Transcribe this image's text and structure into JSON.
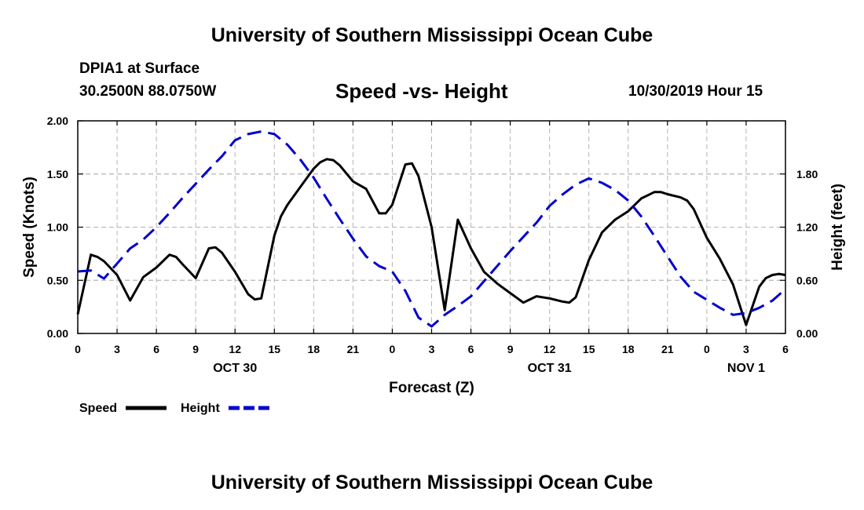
{
  "header": {
    "org_title": "University of Southern Mississippi Ocean Cube",
    "station": "DPIA1 at Surface",
    "coords": "30.2500N 88.0750W",
    "chart_title": "Speed -vs- Height",
    "run": "10/30/2019 Hour 15"
  },
  "footer": {
    "org_title": "University of Southern Mississippi Ocean Cube"
  },
  "legend": [
    {
      "label": "Speed",
      "color": "#000000",
      "style": "solid"
    },
    {
      "label": "Height",
      "color": "#0000cc",
      "style": "dashed"
    }
  ],
  "chart_data": {
    "type": "line",
    "title": "Speed -vs- Height",
    "xlabel": "Forecast (Z)",
    "ylabel_left": "Speed (Knots)",
    "ylabel_right": "Height (feet)",
    "x_range_hours": [
      0,
      54
    ],
    "y_left_range": [
      0,
      2
    ],
    "y_right_range": [
      0,
      2.4
    ],
    "x_ticks": [
      {
        "h": 0,
        "label": "0"
      },
      {
        "h": 3,
        "label": "3"
      },
      {
        "h": 6,
        "label": "6"
      },
      {
        "h": 9,
        "label": "9"
      },
      {
        "h": 12,
        "label": "12"
      },
      {
        "h": 15,
        "label": "15"
      },
      {
        "h": 18,
        "label": "18"
      },
      {
        "h": 21,
        "label": "21"
      },
      {
        "h": 24,
        "label": "0"
      },
      {
        "h": 27,
        "label": "3"
      },
      {
        "h": 30,
        "label": "6"
      },
      {
        "h": 33,
        "label": "9"
      },
      {
        "h": 36,
        "label": "12"
      },
      {
        "h": 39,
        "label": "15"
      },
      {
        "h": 42,
        "label": "18"
      },
      {
        "h": 45,
        "label": "21"
      },
      {
        "h": 48,
        "label": "0"
      },
      {
        "h": 51,
        "label": "3"
      },
      {
        "h": 54,
        "label": "6"
      }
    ],
    "date_labels": [
      {
        "h": 12,
        "label": "OCT 30"
      },
      {
        "h": 36,
        "label": "OCT 31"
      },
      {
        "h": 51,
        "label": "NOV 1"
      }
    ],
    "y_left_ticks": [
      {
        "v": 0,
        "label": "0.00"
      },
      {
        "v": 0.5,
        "label": "0.50"
      },
      {
        "v": 1.0,
        "label": "1.00"
      },
      {
        "v": 1.5,
        "label": "1.50"
      },
      {
        "v": 2.0,
        "label": "2.00"
      }
    ],
    "y_right_ticks": [
      {
        "v": 0,
        "label": "0.00"
      },
      {
        "v": 0.6,
        "label": "0.60"
      },
      {
        "v": 1.2,
        "label": "1.20"
      },
      {
        "v": 1.8,
        "label": "1.80"
      }
    ],
    "series": [
      {
        "name": "Speed",
        "axis": "left",
        "color": "#000000",
        "dash": "",
        "points": [
          [
            0,
            0.18
          ],
          [
            1,
            0.74
          ],
          [
            1.5,
            0.72
          ],
          [
            2,
            0.68
          ],
          [
            3,
            0.55
          ],
          [
            4,
            0.31
          ],
          [
            5,
            0.53
          ],
          [
            6,
            0.62
          ],
          [
            7,
            0.74
          ],
          [
            7.5,
            0.72
          ],
          [
            8,
            0.65
          ],
          [
            9,
            0.52
          ],
          [
            10,
            0.8
          ],
          [
            10.5,
            0.81
          ],
          [
            11,
            0.76
          ],
          [
            12,
            0.58
          ],
          [
            13,
            0.37
          ],
          [
            13.5,
            0.32
          ],
          [
            14,
            0.33
          ],
          [
            15,
            0.92
          ],
          [
            15.5,
            1.1
          ],
          [
            16,
            1.21
          ],
          [
            17,
            1.38
          ],
          [
            18,
            1.55
          ],
          [
            18.5,
            1.61
          ],
          [
            19,
            1.64
          ],
          [
            19.5,
            1.63
          ],
          [
            20,
            1.58
          ],
          [
            21,
            1.43
          ],
          [
            22,
            1.36
          ],
          [
            23,
            1.13
          ],
          [
            23.5,
            1.13
          ],
          [
            24,
            1.21
          ],
          [
            25,
            1.59
          ],
          [
            25.5,
            1.6
          ],
          [
            26,
            1.48
          ],
          [
            27,
            1.0
          ],
          [
            28,
            0.22
          ],
          [
            29,
            1.07
          ],
          [
            30,
            0.8
          ],
          [
            31,
            0.58
          ],
          [
            32,
            0.47
          ],
          [
            33,
            0.38
          ],
          [
            34,
            0.29
          ],
          [
            35,
            0.35
          ],
          [
            36,
            0.33
          ],
          [
            37,
            0.3
          ],
          [
            37.5,
            0.29
          ],
          [
            38,
            0.34
          ],
          [
            39,
            0.69
          ],
          [
            40,
            0.95
          ],
          [
            41,
            1.07
          ],
          [
            42,
            1.15
          ],
          [
            43,
            1.27
          ],
          [
            44,
            1.33
          ],
          [
            44.5,
            1.33
          ],
          [
            45,
            1.31
          ],
          [
            46,
            1.28
          ],
          [
            46.5,
            1.25
          ],
          [
            47,
            1.17
          ],
          [
            48,
            0.9
          ],
          [
            49,
            0.7
          ],
          [
            50,
            0.46
          ],
          [
            51,
            0.08
          ],
          [
            52,
            0.44
          ],
          [
            52.5,
            0.52
          ],
          [
            53,
            0.55
          ],
          [
            53.5,
            0.56
          ],
          [
            54,
            0.55
          ]
        ]
      },
      {
        "name": "Height",
        "axis": "right",
        "color": "#0000cc",
        "dash": "18,9",
        "points": [
          [
            0,
            0.7
          ],
          [
            1,
            0.71
          ],
          [
            2,
            0.62
          ],
          [
            3,
            0.79
          ],
          [
            4,
            0.96
          ],
          [
            5,
            1.06
          ],
          [
            6,
            1.2
          ],
          [
            7,
            1.36
          ],
          [
            8,
            1.53
          ],
          [
            9,
            1.69
          ],
          [
            10,
            1.85
          ],
          [
            11,
            2.0
          ],
          [
            12,
            2.18
          ],
          [
            13,
            2.25
          ],
          [
            14,
            2.28
          ],
          [
            15,
            2.25
          ],
          [
            16,
            2.13
          ],
          [
            17,
            1.96
          ],
          [
            18,
            1.76
          ],
          [
            19,
            1.52
          ],
          [
            20,
            1.29
          ],
          [
            21,
            1.07
          ],
          [
            22,
            0.87
          ],
          [
            23,
            0.76
          ],
          [
            24,
            0.7
          ],
          [
            25,
            0.48
          ],
          [
            26,
            0.18
          ],
          [
            27,
            0.08
          ],
          [
            28,
            0.21
          ],
          [
            29,
            0.31
          ],
          [
            30,
            0.42
          ],
          [
            31,
            0.59
          ],
          [
            32,
            0.76
          ],
          [
            33,
            0.93
          ],
          [
            34,
            1.09
          ],
          [
            35,
            1.25
          ],
          [
            36,
            1.44
          ],
          [
            37,
            1.57
          ],
          [
            38,
            1.68
          ],
          [
            39,
            1.75
          ],
          [
            40,
            1.7
          ],
          [
            41,
            1.62
          ],
          [
            42,
            1.5
          ],
          [
            43,
            1.32
          ],
          [
            44,
            1.1
          ],
          [
            45,
            0.87
          ],
          [
            46,
            0.64
          ],
          [
            47,
            0.47
          ],
          [
            48,
            0.38
          ],
          [
            49,
            0.29
          ],
          [
            50,
            0.21
          ],
          [
            51,
            0.23
          ],
          [
            52,
            0.29
          ],
          [
            53,
            0.37
          ],
          [
            54,
            0.5
          ]
        ]
      }
    ]
  }
}
